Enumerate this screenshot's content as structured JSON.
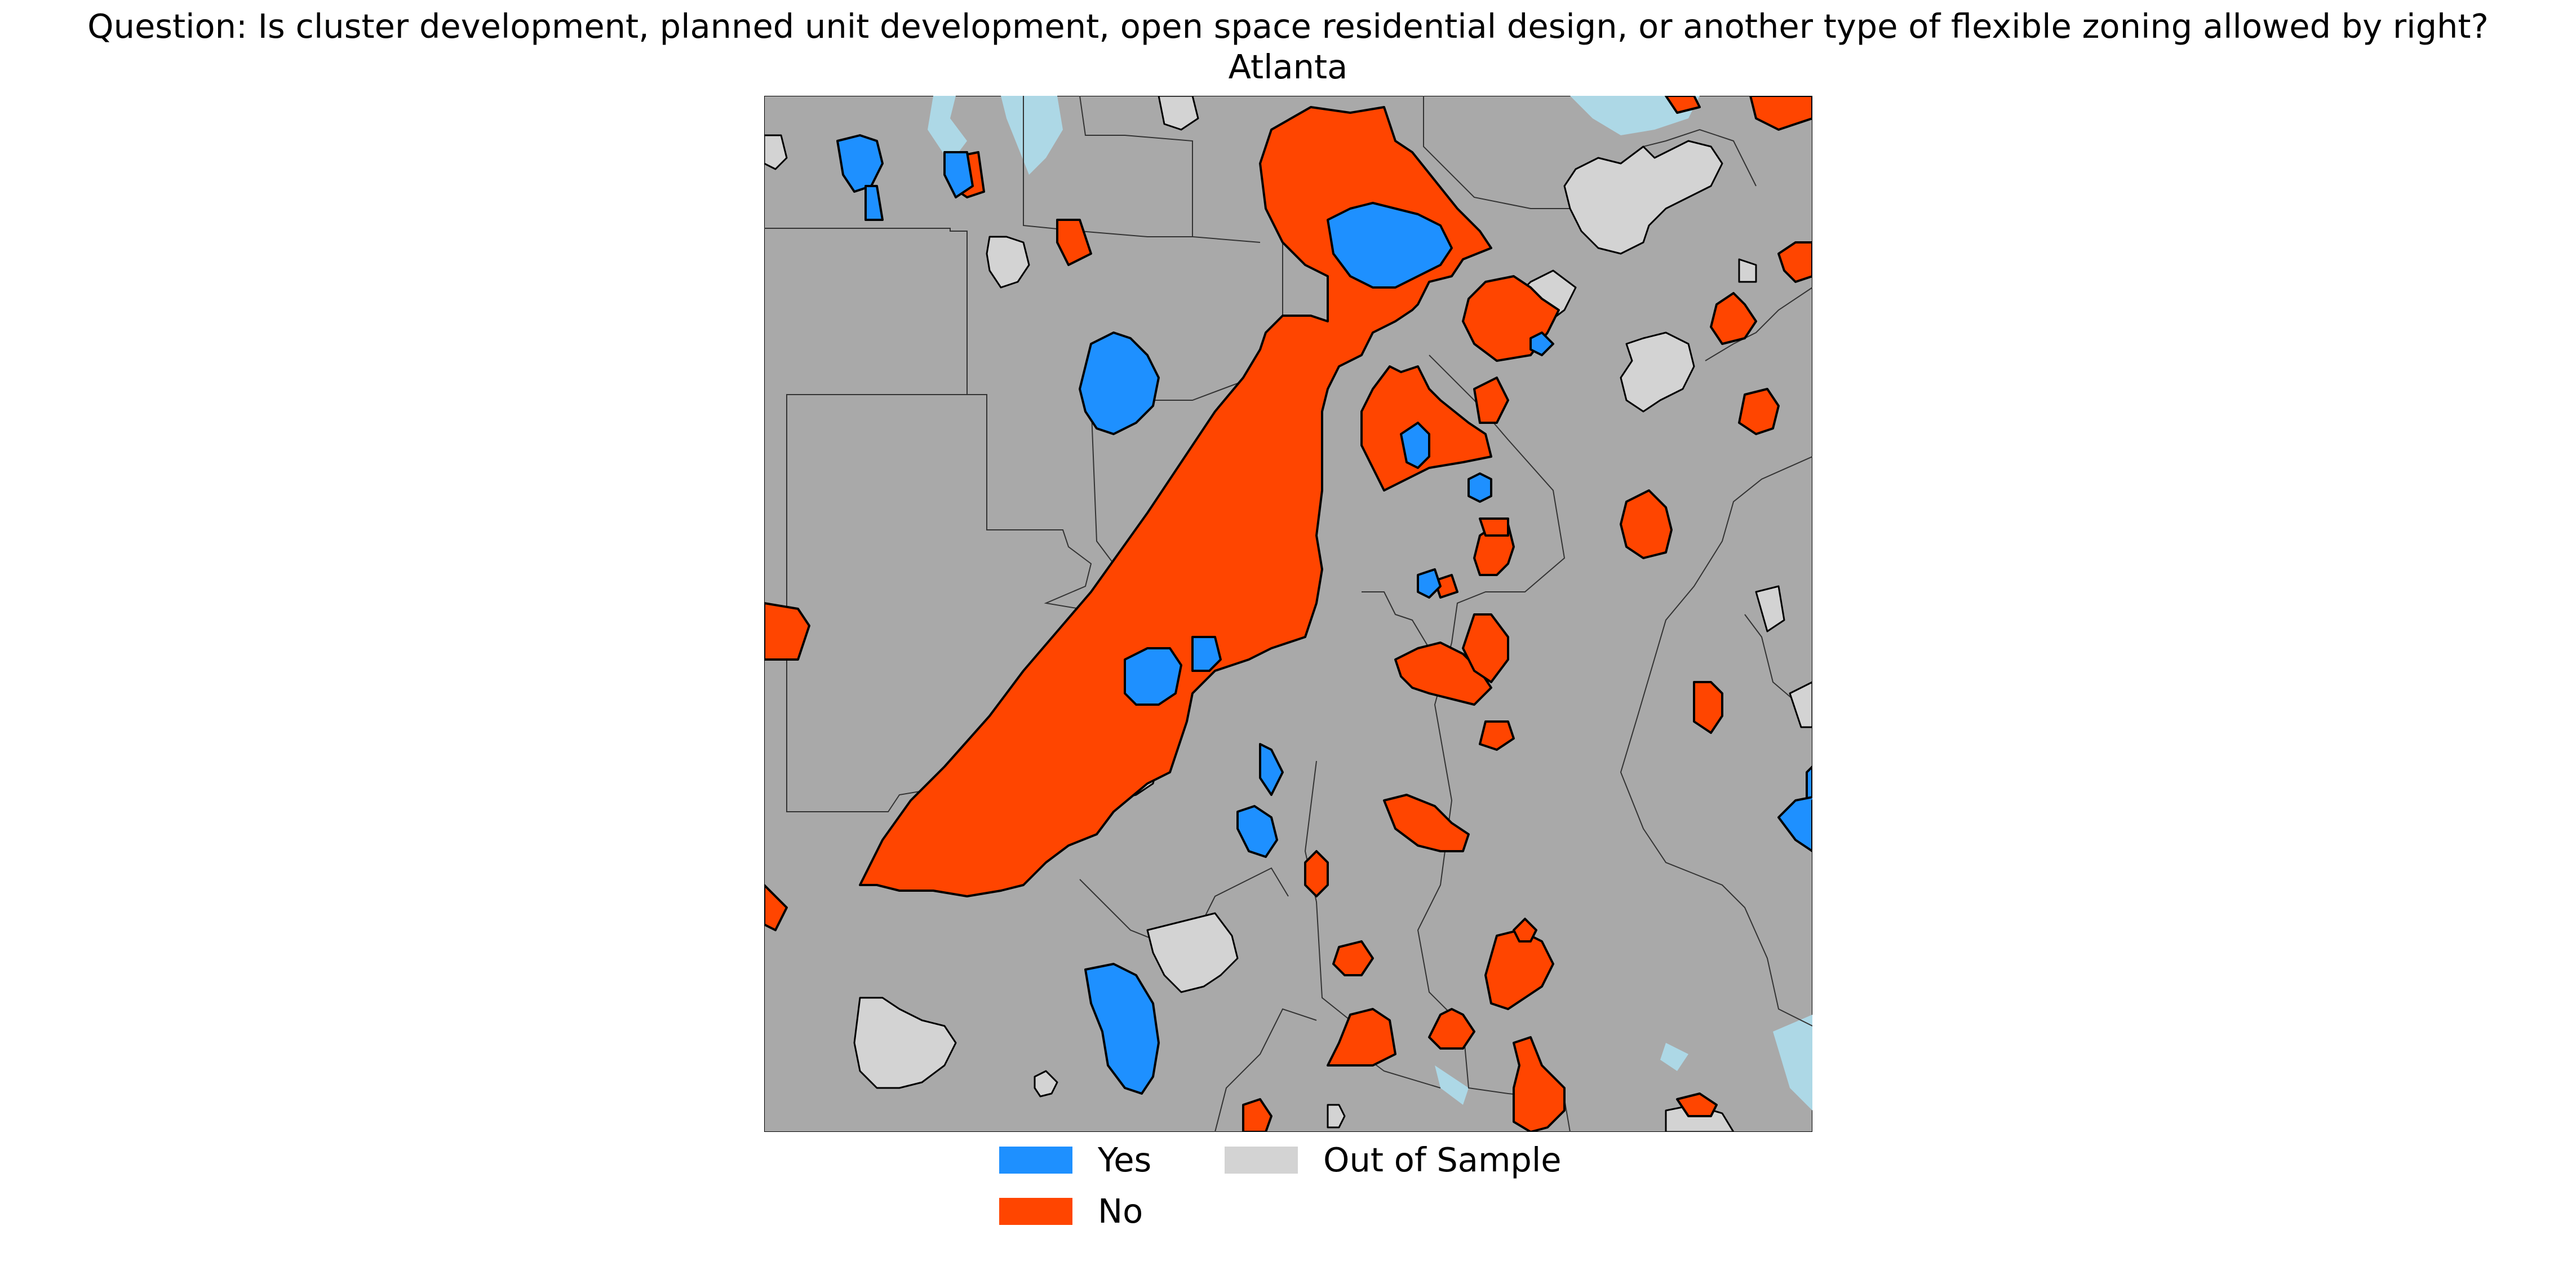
{
  "title": "Question: Is cluster development, planned unit development, open space residential design, or another type of flexible zoning allowed by right?",
  "subtitle": "Atlanta",
  "colors": {
    "yes": "#1e90ff",
    "no": "#ff4500",
    "out_of_sample": "#d3d3d3",
    "background": "#a9a9a9",
    "water": "#add8e6",
    "boundary": "#000000"
  },
  "legend": [
    {
      "key": "yes",
      "label": "Yes"
    },
    {
      "key": "no",
      "label": "No"
    },
    {
      "key": "out_of_sample",
      "label": "Out of Sample"
    }
  ]
}
